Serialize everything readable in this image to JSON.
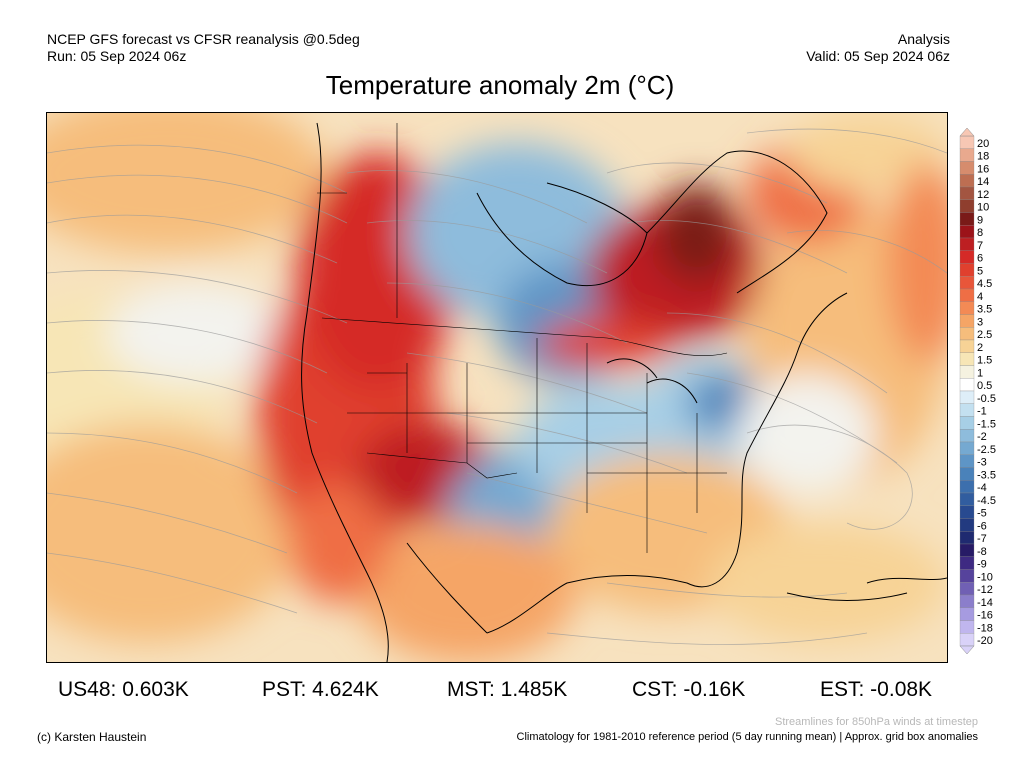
{
  "header": {
    "line1_left": "NCEP GFS forecast vs CFSR reanalysis @0.5deg",
    "line2_left": "Run: 05 Sep 2024 06z",
    "line1_right": "Analysis",
    "line2_right": "Valid: 05 Sep 2024 06z"
  },
  "title": "Temperature anomaly 2m (°C)",
  "colorbar": {
    "labels": [
      "20",
      "18",
      "16",
      "14",
      "12",
      "10",
      "9",
      "8",
      "7",
      "6",
      "5",
      "4.5",
      "4",
      "3.5",
      "3",
      "2.5",
      "2",
      "1.5",
      "1",
      "0.5",
      "-0.5",
      "-1",
      "-1.5",
      "-2",
      "-2.5",
      "-3",
      "-3.5",
      "-4",
      "-4.5",
      "-5",
      "-6",
      "-7",
      "-8",
      "-9",
      "-10",
      "-12",
      "-14",
      "-16",
      "-18",
      "-20"
    ],
    "colors": [
      "#f7c7b4",
      "#e9a98e",
      "#d68c6d",
      "#bd6e52",
      "#a35541",
      "#8f3e2e",
      "#7a1a18",
      "#9c1319",
      "#bd1f22",
      "#d52a27",
      "#e0402e",
      "#e8563a",
      "#ef6e45",
      "#f38a55",
      "#f5a566",
      "#f6bd7c",
      "#f7d396",
      "#f7e6b6",
      "#f5f2e0",
      "#ffffff",
      "#deeef8",
      "#c3e0f0",
      "#a7cfe6",
      "#8ebcdc",
      "#75a9d1",
      "#5e95c6",
      "#4a82ba",
      "#3c6fad",
      "#315d9f",
      "#284a90",
      "#223a80",
      "#1f2a70",
      "#271b66",
      "#3e2a82",
      "#56439c",
      "#7060b4",
      "#8b7ecb",
      "#a69be0",
      "#c0b6ee",
      "#d9d2f8"
    ]
  },
  "stats": [
    {
      "label": "US48: 0.603K"
    },
    {
      "label": "PST: 4.624K"
    },
    {
      "label": "MST: 1.485K"
    },
    {
      "label": "CST: -0.16K"
    },
    {
      "label": "EST: -0.08K"
    }
  ],
  "notes": {
    "streamlines": "Streamlines for 850hPa winds at timestep",
    "copyright": "(c) Karsten Haustein",
    "climatology": "Climatology for 1981-2010 reference period (5 day running mean) | Approx. grid box anomalies"
  }
}
